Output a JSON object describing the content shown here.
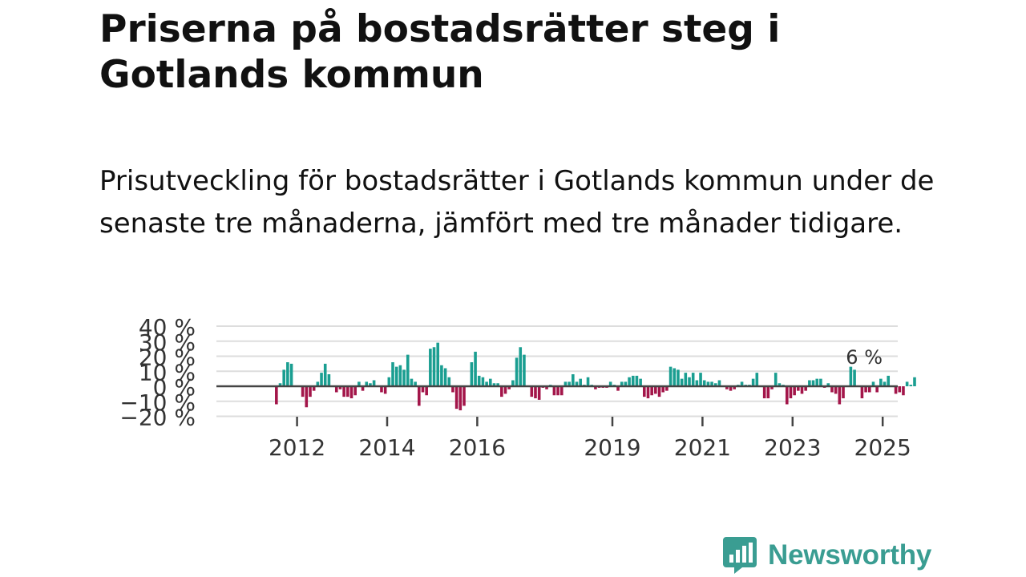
{
  "title": "Priserna på bostadsrätter steg i Gotlands kommun",
  "subtitle": "Prisutveckling för bostadsrätter i Gotlands kommun under de senaste tre månaderna, jämfört med tre månader tidigare.",
  "brand": {
    "name": "Newsworthy",
    "color": "#3a9d92"
  },
  "colors": {
    "positive": "#1a9e91",
    "negative": "#a3164a",
    "grid": "#dddddd",
    "zero": "#444444"
  },
  "chart_data": {
    "type": "bar",
    "x_start": {
      "year": 2011,
      "month": 11
    },
    "y_ticks": [
      40,
      30,
      20,
      10,
      0,
      -10,
      -20
    ],
    "y_tick_labels": [
      "40 %",
      "30 %",
      "20 %",
      "10 %",
      "0 %",
      "−10 %",
      "−20 %"
    ],
    "ylim": [
      -20,
      40
    ],
    "x_ticks": [
      2012,
      2014,
      2016,
      2019,
      2021,
      2023,
      2025
    ],
    "last_value_label": "6 %",
    "values": [
      -12,
      2,
      11,
      16,
      15,
      0,
      0,
      -7,
      -14,
      -7,
      -3,
      3,
      9,
      15,
      8,
      0,
      -4,
      -2,
      -7,
      -7,
      -8,
      -6,
      3,
      -3,
      3,
      2,
      4,
      0,
      -4,
      -5,
      6,
      16,
      13,
      14,
      11,
      21,
      5,
      3,
      -13,
      -4,
      -6,
      25,
      26,
      29,
      14,
      12,
      6,
      -4,
      -15,
      -16,
      -13,
      0,
      16,
      23,
      7,
      6,
      3,
      5,
      2,
      2,
      -7,
      -5,
      -2,
      4,
      19,
      26,
      21,
      0,
      -7,
      -8,
      -9,
      -1,
      -2,
      1,
      -6,
      -6,
      -6,
      3,
      3,
      8,
      3,
      5,
      1,
      6,
      1,
      -2,
      -1,
      -1,
      -1,
      3,
      1,
      -3,
      3,
      3,
      6,
      7,
      7,
      5,
      -7,
      -8,
      -6,
      -5,
      -7,
      -4,
      -3,
      13,
      12,
      11,
      5,
      9,
      6,
      9,
      4,
      9,
      4,
      3,
      3,
      2,
      4,
      0,
      -2,
      -3,
      -2,
      1,
      3,
      1,
      1,
      5,
      9,
      0,
      -8,
      -8,
      -2,
      9,
      2,
      1,
      -12,
      -8,
      -6,
      -3,
      -5,
      -3,
      4,
      4,
      5,
      5,
      -1,
      2,
      -4,
      -5,
      -12,
      -8,
      0,
      13,
      11,
      0,
      -8,
      -4,
      -4,
      3,
      -4,
      5,
      3,
      7,
      0,
      -5,
      -4,
      -6,
      3,
      1,
      6
    ]
  }
}
